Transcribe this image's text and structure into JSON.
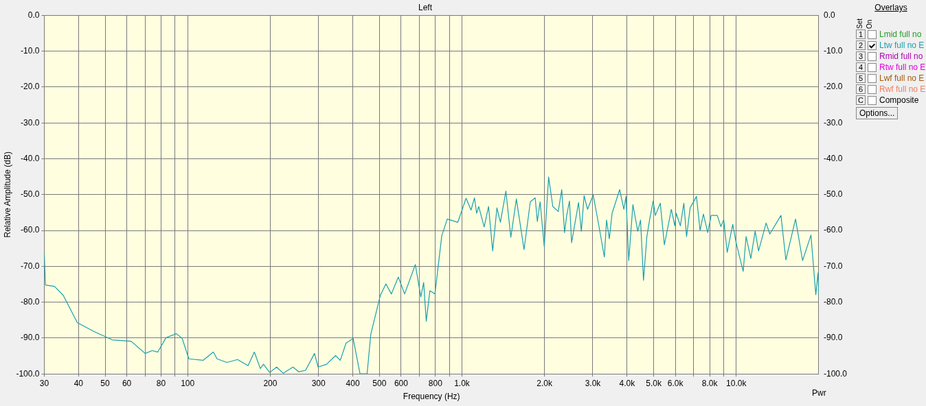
{
  "chart_data": {
    "type": "line",
    "title": "Left",
    "xlabel": "Frequency (Hz)",
    "ylabel": "Relative Amplitude (dB)",
    "log": "x",
    "grid": true,
    "marker": "none",
    "line_style": "solid",
    "legend": "right",
    "xlim": [
      30,
      20000
    ],
    "xticks": [
      30,
      40,
      50,
      60,
      {
        "value": 70,
        "label": null
      },
      80,
      {
        "value": 90,
        "label": null
      },
      100,
      200,
      300,
      400,
      500,
      600,
      {
        "value": 700,
        "label": null
      },
      800,
      {
        "value": 900,
        "label": null
      },
      {
        "value": 1000,
        "label": "1.0k"
      },
      {
        "value": 2000,
        "label": "2.0k"
      },
      {
        "value": 3000,
        "label": "3.0k"
      },
      {
        "value": 4000,
        "label": "4.0k"
      },
      {
        "value": 5000,
        "label": "5.0k"
      },
      {
        "value": 6000,
        "label": "6.0k"
      },
      {
        "value": 7000,
        "label": null
      },
      {
        "value": 8000,
        "label": "8.0k"
      },
      {
        "value": 9000,
        "label": null
      },
      {
        "value": 10000,
        "label": "10.0k"
      }
    ],
    "ylim": [
      -100,
      0
    ],
    "yticks": [
      {
        "value": 0,
        "label": "0.0"
      },
      {
        "value": -10,
        "label": "-10.0"
      },
      {
        "value": -20,
        "label": "-20.0"
      },
      {
        "value": -30,
        "label": "-30.0"
      },
      {
        "value": -40,
        "label": "-40.0"
      },
      {
        "value": -50,
        "label": "-50.0"
      },
      {
        "value": -60,
        "label": "-60.0"
      },
      {
        "value": -70,
        "label": "-70.0"
      },
      {
        "value": -80,
        "label": "-80.0"
      },
      {
        "value": -90,
        "label": "-90.0"
      },
      {
        "value": -100,
        "label": "-100.0"
      }
    ],
    "y2lim": [
      -100,
      0
    ],
    "y2ticks": [
      {
        "value": 0,
        "label": "0.0"
      },
      {
        "value": -10,
        "label": "-10.0"
      },
      {
        "value": -20,
        "label": "-20.0"
      },
      {
        "value": -30,
        "label": "-30.0"
      },
      {
        "value": -40,
        "label": "-40.0"
      },
      {
        "value": -50,
        "label": "-50.0"
      },
      {
        "value": -60,
        "label": "-60.0"
      },
      {
        "value": -70,
        "label": "-70.0"
      },
      {
        "value": -80,
        "label": "-80.0"
      },
      {
        "value": -90,
        "label": "-90.0"
      },
      {
        "value": -100,
        "label": "-100.0"
      }
    ],
    "annotations": [
      "Overlays",
      "Set",
      "On",
      "1",
      "Lmid full no",
      "2",
      "3",
      "Rmid full no",
      "4",
      "Rtw full no E",
      "5",
      "Lwf full no E",
      "6",
      "Rwf full no E",
      "C",
      "Composite",
      "Options...",
      "Pwr"
    ],
    "series": [
      {
        "name": "Ltw full no E",
        "color": "#1a9fae",
        "x": [
          30,
          30.3,
          32.7,
          35.2,
          39.6,
          45.6,
          53.1,
          62.2,
          70,
          74.2,
          77.8,
          83.4,
          91,
          95.5,
          101,
          114,
          124,
          128,
          139,
          152,
          166,
          175,
          184,
          189,
          199,
          211,
          223,
          242,
          254,
          269,
          290,
          299,
          321,
          346,
          360,
          378,
          401,
          425,
          451,
          465,
          504,
          528,
          553,
          586,
          618,
          676,
          708,
          725,
          741,
          764,
          797,
          844,
          884,
          966,
          1035,
          1079,
          1111,
          1131,
          1151,
          1205,
          1250,
          1294,
          1341,
          1381,
          1446,
          1507,
          1579,
          1684,
          1775,
          1849,
          1883,
          1927,
          1995,
          2070,
          2144,
          2244,
          2311,
          2366,
          2409,
          2466,
          2510,
          2661,
          2724,
          2788,
          2870,
          3009,
          3136,
          3305,
          3366,
          3445,
          3526,
          3758,
          3893,
          3963,
          4055,
          4199,
          4375,
          4478,
          4590,
          4722,
          4831,
          4977,
          5070,
          5284,
          5470,
          5800,
          5970,
          6040,
          6255,
          6440,
          6590,
          6790,
          7160,
          7380,
          7590,
          7870,
          8100,
          8530,
          8790,
          9000,
          9270,
          9710,
          10000,
          10600,
          10860,
          11300,
          11720,
          12060,
          12850,
          13250,
          14550,
          15170,
          16450,
          17450,
          18720,
          19500,
          19870,
          20000
        ],
        "values": [
          -66.3,
          -75.2,
          -75.6,
          -78.1,
          -85.7,
          -88.2,
          -90.5,
          -90.9,
          -94.3,
          -93.5,
          -93.9,
          -89.9,
          -88.8,
          -90.1,
          -95.8,
          -96.2,
          -93.9,
          -95.8,
          -96.8,
          -96,
          -97.7,
          -93.9,
          -98.5,
          -97.3,
          -99.6,
          -98.1,
          -99.8,
          -98.1,
          -99.4,
          -99,
          -94.3,
          -98.1,
          -97.3,
          -94.9,
          -96.2,
          -91.4,
          -90.1,
          -100,
          -100,
          -89,
          -78.1,
          -74.9,
          -77.7,
          -73,
          -77.7,
          -69.5,
          -78.5,
          -74.5,
          -85.3,
          -76.8,
          -77.7,
          -61.5,
          -56.8,
          -57.7,
          -51,
          -54.3,
          -50.9,
          -55.2,
          -53.3,
          -59,
          -53.3,
          -65.7,
          -53.7,
          -57.7,
          -49,
          -61.9,
          -51.2,
          -65.3,
          -52,
          -50.9,
          -57.5,
          -52,
          -64.4,
          -45.1,
          -53.3,
          -54.7,
          -48.6,
          -60.6,
          -55.8,
          -51.8,
          -63.4,
          -52.2,
          -60.2,
          -50.3,
          -54.1,
          -50.1,
          -57.5,
          -67.4,
          -57.1,
          -62.3,
          -55.2,
          -48.6,
          -54.1,
          -50.5,
          -68.4,
          -52.8,
          -60.2,
          -57.1,
          -73.9,
          -61.7,
          -57.1,
          -51.8,
          -55.8,
          -52.4,
          -64,
          -54.1,
          -58.7,
          -55.2,
          -58.7,
          -52.4,
          -61.7,
          -53.7,
          -50.5,
          -60,
          -55.4,
          -60.6,
          -55.8,
          -55.8,
          -58.9,
          -57,
          -66.1,
          -58.3,
          -63.6,
          -71.4,
          -61.7,
          -67.8,
          -60.2,
          -65.7,
          -57.9,
          -61,
          -55.8,
          -68.2,
          -56.8,
          -68.4,
          -61.3,
          -77.9,
          -71.8,
          -77.9
        ]
      }
    ]
  }
}
